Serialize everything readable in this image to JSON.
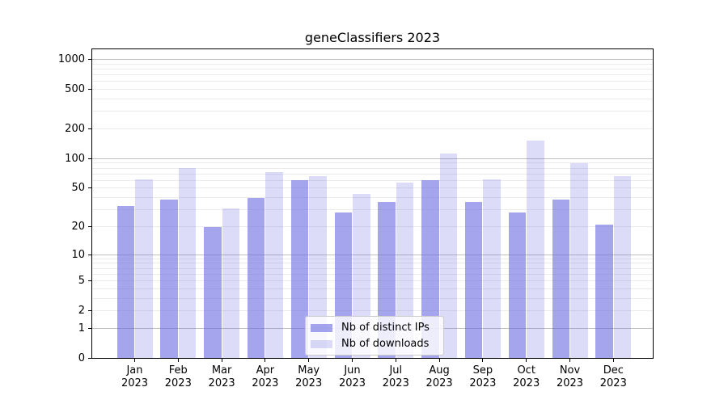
{
  "title": "geneClassifiers 2023",
  "colors": {
    "axis": "#000000",
    "grid_major": "#bfbfbf",
    "grid_minor": "#ebebeb",
    "bar_distinct_ips": "rgba(102,102,224,0.59)",
    "bar_downloads": "rgba(102,102,224,0.23)",
    "bar_distinct_ips_hex_on_white": "#a5a5f0",
    "bar_downloads_hex_on_white": "#dcdcf8",
    "legend_border": "#cccccc",
    "legend_bg": "rgba(255,255,255,0.8)"
  },
  "legend": {
    "items": [
      {
        "label": "Nb of distinct IPs",
        "color_key": "bar_distinct_ips"
      },
      {
        "label": "Nb of downloads",
        "color_key": "bar_downloads"
      }
    ]
  },
  "chart_data": {
    "type": "bar",
    "title": "geneClassifiers 2023",
    "xlabel": "",
    "ylabel": "",
    "months": [
      "Jan",
      "Feb",
      "Mar",
      "Apr",
      "May",
      "Jun",
      "Jul",
      "Aug",
      "Sep",
      "Oct",
      "Nov",
      "Dec"
    ],
    "year": "2023",
    "categories": [
      "Jan 2023",
      "Feb 2023",
      "Mar 2023",
      "Apr 2023",
      "May 2023",
      "Jun 2023",
      "Jul 2023",
      "Aug 2023",
      "Sep 2023",
      "Oct 2023",
      "Nov 2023",
      "Dec 2023"
    ],
    "series": [
      {
        "name": "Nb of distinct IPs",
        "values": [
          33,
          38,
          20,
          40,
          60,
          28,
          36,
          61,
          36,
          28,
          38,
          21
        ]
      },
      {
        "name": "Nb of downloads",
        "values": [
          62,
          80,
          31,
          73,
          67,
          44,
          57,
          112,
          62,
          152,
          90,
          67
        ]
      }
    ],
    "yscale": "log1p",
    "y_ticks": [
      0,
      1,
      2,
      5,
      10,
      20,
      50,
      100,
      200,
      500,
      1000
    ],
    "y_major_gridlines": [
      1,
      10,
      100,
      1000
    ],
    "ylim": [
      0,
      1290
    ],
    "grid": true,
    "legend_position": "lower center"
  }
}
